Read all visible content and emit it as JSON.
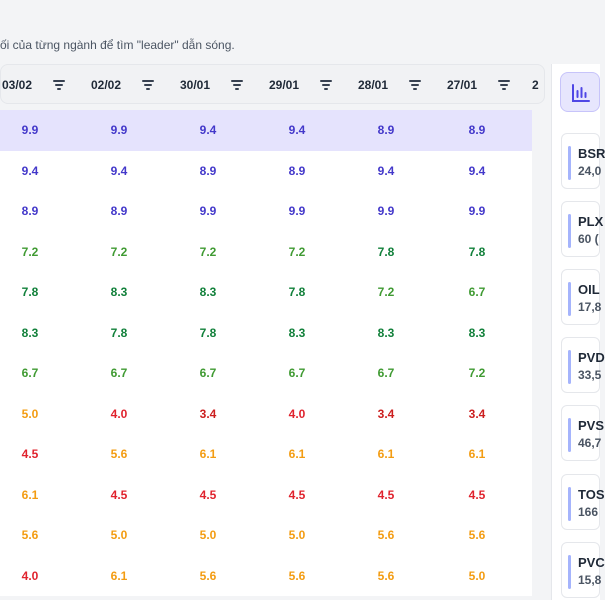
{
  "page": {
    "subtitle": "ối của từng ngành để tìm \"leader\" dẫn sóng."
  },
  "table": {
    "columns": [
      "03/02",
      "02/02",
      "30/01",
      "29/01",
      "28/01",
      "27/01",
      "2"
    ],
    "rows": [
      {
        "cells": [
          {
            "v": "9.9",
            "c": "blue"
          },
          {
            "v": "9.9",
            "c": "blue"
          },
          {
            "v": "9.4",
            "c": "blue"
          },
          {
            "v": "9.4",
            "c": "blue"
          },
          {
            "v": "8.9",
            "c": "blue"
          },
          {
            "v": "8.9",
            "c": "blue"
          }
        ],
        "highlight": true
      },
      {
        "cells": [
          {
            "v": "9.4",
            "c": "blue"
          },
          {
            "v": "9.4",
            "c": "blue"
          },
          {
            "v": "8.9",
            "c": "blue"
          },
          {
            "v": "8.9",
            "c": "blue"
          },
          {
            "v": "9.4",
            "c": "blue"
          },
          {
            "v": "9.4",
            "c": "blue"
          }
        ]
      },
      {
        "cells": [
          {
            "v": "8.9",
            "c": "blue"
          },
          {
            "v": "8.9",
            "c": "blue"
          },
          {
            "v": "9.9",
            "c": "blue"
          },
          {
            "v": "9.9",
            "c": "blue"
          },
          {
            "v": "9.9",
            "c": "blue"
          },
          {
            "v": "9.9",
            "c": "blue"
          }
        ]
      },
      {
        "cells": [
          {
            "v": "7.2",
            "c": "green"
          },
          {
            "v": "7.2",
            "c": "green"
          },
          {
            "v": "7.2",
            "c": "green"
          },
          {
            "v": "7.2",
            "c": "green"
          },
          {
            "v": "7.8",
            "c": "dgreen"
          },
          {
            "v": "7.8",
            "c": "dgreen"
          }
        ]
      },
      {
        "cells": [
          {
            "v": "7.8",
            "c": "dgreen"
          },
          {
            "v": "8.3",
            "c": "dgreen"
          },
          {
            "v": "8.3",
            "c": "dgreen"
          },
          {
            "v": "7.8",
            "c": "dgreen"
          },
          {
            "v": "7.2",
            "c": "green"
          },
          {
            "v": "6.7",
            "c": "green"
          }
        ]
      },
      {
        "cells": [
          {
            "v": "8.3",
            "c": "dgreen"
          },
          {
            "v": "7.8",
            "c": "dgreen"
          },
          {
            "v": "7.8",
            "c": "dgreen"
          },
          {
            "v": "8.3",
            "c": "dgreen"
          },
          {
            "v": "8.3",
            "c": "dgreen"
          },
          {
            "v": "8.3",
            "c": "dgreen"
          }
        ]
      },
      {
        "cells": [
          {
            "v": "6.7",
            "c": "green"
          },
          {
            "v": "6.7",
            "c": "green"
          },
          {
            "v": "6.7",
            "c": "green"
          },
          {
            "v": "6.7",
            "c": "green"
          },
          {
            "v": "6.7",
            "c": "green"
          },
          {
            "v": "7.2",
            "c": "green"
          }
        ]
      },
      {
        "cells": [
          {
            "v": "5.0",
            "c": "orange"
          },
          {
            "v": "4.0",
            "c": "red"
          },
          {
            "v": "3.4",
            "c": "dred"
          },
          {
            "v": "4.0",
            "c": "red"
          },
          {
            "v": "3.4",
            "c": "dred"
          },
          {
            "v": "3.4",
            "c": "dred"
          }
        ]
      },
      {
        "cells": [
          {
            "v": "4.5",
            "c": "red"
          },
          {
            "v": "5.6",
            "c": "orange"
          },
          {
            "v": "6.1",
            "c": "orange"
          },
          {
            "v": "6.1",
            "c": "orange"
          },
          {
            "v": "6.1",
            "c": "orange"
          },
          {
            "v": "6.1",
            "c": "orange"
          }
        ]
      },
      {
        "cells": [
          {
            "v": "6.1",
            "c": "orange"
          },
          {
            "v": "4.5",
            "c": "red"
          },
          {
            "v": "4.5",
            "c": "red"
          },
          {
            "v": "4.5",
            "c": "red"
          },
          {
            "v": "4.5",
            "c": "red"
          },
          {
            "v": "4.5",
            "c": "red"
          }
        ]
      },
      {
        "cells": [
          {
            "v": "5.6",
            "c": "orange"
          },
          {
            "v": "5.0",
            "c": "orange"
          },
          {
            "v": "5.0",
            "c": "orange"
          },
          {
            "v": "5.0",
            "c": "orange"
          },
          {
            "v": "5.6",
            "c": "orange"
          },
          {
            "v": "5.6",
            "c": "orange"
          }
        ]
      },
      {
        "cells": [
          {
            "v": "4.0",
            "c": "red"
          },
          {
            "v": "6.1",
            "c": "orange"
          },
          {
            "v": "5.6",
            "c": "orange"
          },
          {
            "v": "5.6",
            "c": "orange"
          },
          {
            "v": "5.6",
            "c": "orange"
          },
          {
            "v": "5.0",
            "c": "orange"
          }
        ]
      }
    ],
    "filter_icon": "filter-lines-icon"
  },
  "sidebar": {
    "chart_button_icon": "bar-chart-icon",
    "stocks": [
      {
        "symbol": "BSR",
        "value": "24,0"
      },
      {
        "symbol": "PLX",
        "value": "60 ("
      },
      {
        "symbol": "OIL",
        "value": "17,8"
      },
      {
        "symbol": "PVD",
        "value": "33,5"
      },
      {
        "symbol": "PVS",
        "value": "46,7"
      },
      {
        "symbol": "TOS",
        "value": "166"
      },
      {
        "symbol": "PVC",
        "value": "15,8"
      }
    ]
  },
  "colors": {
    "blue": "#4338ca",
    "green": "#3f9a32",
    "dgreen": "#11803a",
    "orange": "#f39c12",
    "red": "#e0232e",
    "dred": "#cc1f1f",
    "highlight_row": "#e5e3fd",
    "accent": "#6366f1"
  }
}
